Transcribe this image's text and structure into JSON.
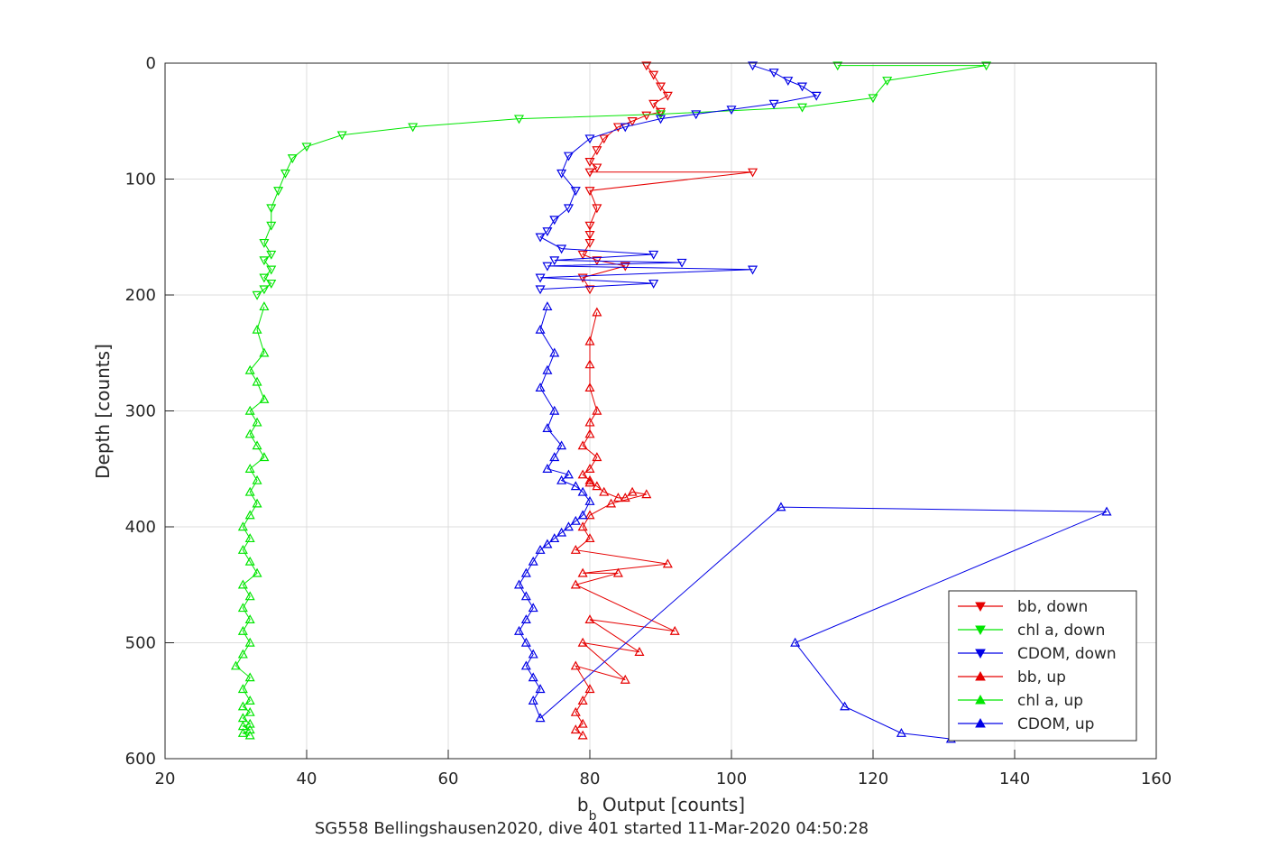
{
  "chart_data": {
    "type": "scatter",
    "xlabel_main": "b",
    "xlabel_sub": "b",
    "xlabel_rest": " Output [counts]",
    "ylabel": "Depth [counts]",
    "caption": "SG558 Bellingshausen2020, dive 401 started 11-Mar-2020 04:50:28",
    "xlim": [
      20,
      160
    ],
    "ylim": [
      0,
      600
    ],
    "y_reversed": true,
    "grid": true,
    "legend_position": "bottom-right",
    "x_ticks": [
      20,
      40,
      60,
      80,
      100,
      120,
      140,
      160
    ],
    "y_ticks": [
      0,
      100,
      200,
      300,
      400,
      500,
      600
    ],
    "series": [
      {
        "name": "bb, down",
        "color": "#e60000",
        "marker": "down",
        "x": [
          88,
          89,
          90,
          91,
          89,
          90,
          88,
          86,
          84,
          82,
          81,
          80,
          81,
          80,
          103,
          80,
          81,
          80,
          80,
          80,
          79,
          81,
          85,
          79,
          80
        ],
        "y": [
          2,
          10,
          20,
          28,
          35,
          42,
          45,
          50,
          55,
          65,
          75,
          85,
          90,
          94,
          94,
          110,
          125,
          140,
          148,
          155,
          165,
          170,
          175,
          185,
          195
        ]
      },
      {
        "name": "chl a, down",
        "color": "#00e600",
        "marker": "down",
        "x": [
          115,
          136,
          122,
          120,
          110,
          90,
          70,
          55,
          45,
          40,
          38,
          37,
          36,
          35,
          35,
          34,
          35,
          34,
          35,
          34,
          35,
          34,
          33
        ],
        "y": [
          2,
          2,
          15,
          30,
          38,
          44,
          48,
          55,
          62,
          72,
          82,
          95,
          110,
          125,
          140,
          155,
          165,
          170,
          178,
          185,
          190,
          195,
          200
        ]
      },
      {
        "name": "CDOM, down",
        "color": "#0000e6",
        "marker": "down",
        "x": [
          103,
          106,
          108,
          110,
          112,
          106,
          100,
          95,
          90,
          85,
          80,
          77,
          76,
          78,
          77,
          75,
          74,
          73,
          76,
          89,
          75,
          93,
          74,
          103,
          73,
          89,
          73
        ],
        "y": [
          2,
          8,
          15,
          20,
          28,
          35,
          40,
          44,
          48,
          55,
          65,
          80,
          95,
          110,
          125,
          135,
          145,
          150,
          160,
          165,
          170,
          172,
          175,
          178,
          185,
          190,
          195
        ]
      },
      {
        "name": "bb, up",
        "color": "#e60000",
        "marker": "up",
        "x": [
          81,
          80,
          80,
          80,
          81,
          80,
          80,
          79,
          81,
          80,
          79,
          80,
          80,
          81,
          82,
          84,
          85,
          86,
          88,
          83,
          80,
          79,
          80,
          78,
          91,
          79,
          84,
          78,
          92,
          80,
          87,
          79,
          85,
          78,
          80,
          79,
          78,
          79,
          78,
          79
        ],
        "y": [
          215,
          240,
          260,
          280,
          300,
          310,
          320,
          330,
          340,
          350,
          355,
          360,
          362,
          365,
          370,
          375,
          375,
          370,
          372,
          380,
          390,
          400,
          410,
          420,
          432,
          440,
          440,
          450,
          490,
          480,
          508,
          500,
          532,
          520,
          540,
          550,
          560,
          570,
          575,
          580
        ]
      },
      {
        "name": "chl a, up",
        "color": "#00e600",
        "marker": "up",
        "x": [
          34,
          33,
          34,
          32,
          33,
          34,
          32,
          33,
          32,
          33,
          34,
          32,
          33,
          32,
          33,
          32,
          31,
          32,
          31,
          32,
          33,
          31,
          32,
          31,
          32,
          31,
          32,
          31,
          30,
          32,
          31,
          32,
          31,
          32,
          31,
          32,
          31,
          32,
          31,
          32
        ],
        "y": [
          210,
          230,
          250,
          265,
          275,
          290,
          300,
          310,
          320,
          330,
          340,
          350,
          360,
          370,
          380,
          390,
          400,
          410,
          420,
          430,
          440,
          450,
          460,
          470,
          480,
          490,
          500,
          510,
          520,
          530,
          540,
          550,
          555,
          560,
          565,
          570,
          572,
          575,
          578,
          580
        ]
      },
      {
        "name": "CDOM, up",
        "color": "#0000e6",
        "marker": "up",
        "x": [
          74,
          73,
          75,
          74,
          73,
          75,
          74,
          76,
          75,
          74,
          77,
          76,
          78,
          79,
          80,
          79,
          78,
          77,
          76,
          75,
          74,
          73,
          72,
          71,
          70,
          71,
          72,
          71,
          70,
          71,
          72,
          71,
          72,
          73,
          72,
          73,
          107,
          153,
          109,
          116,
          124,
          131
        ],
        "y": [
          210,
          230,
          250,
          265,
          280,
          300,
          315,
          330,
          340,
          350,
          355,
          360,
          365,
          370,
          378,
          390,
          395,
          400,
          405,
          410,
          415,
          420,
          430,
          440,
          450,
          460,
          470,
          480,
          490,
          500,
          510,
          520,
          530,
          540,
          550,
          565,
          383,
          387,
          500,
          555,
          578,
          583
        ]
      }
    ]
  }
}
